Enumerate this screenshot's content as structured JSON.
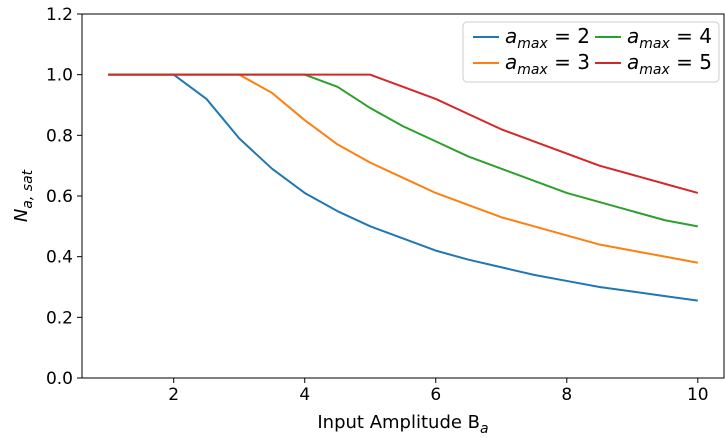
{
  "chart_data": {
    "type": "line",
    "xlabel": "Input Amplitude B",
    "xlabel_sub": "a",
    "ylabel": "N",
    "ylabel_sub": "a, sat",
    "xlim": [
      0.6,
      10.4
    ],
    "ylim": [
      0.0,
      1.2
    ],
    "xticks": [
      2,
      4,
      6,
      8,
      10
    ],
    "yticks": [
      0.0,
      0.2,
      0.4,
      0.6,
      0.8,
      1.0,
      1.2
    ],
    "ytick_labels": [
      "0.0",
      "0.2",
      "0.4",
      "0.6",
      "0.8",
      "1.0",
      "1.2"
    ],
    "grid": false,
    "legend_position": "top-right",
    "x": [
      1.0,
      1.5,
      2.0,
      2.5,
      3.0,
      3.5,
      4.0,
      4.5,
      5.0,
      5.5,
      6.0,
      6.5,
      7.0,
      7.5,
      8.0,
      8.5,
      9.0,
      9.5,
      10.0
    ],
    "series": [
      {
        "name": "a_max = 2",
        "label_var": "a",
        "label_sub": "max",
        "label_val": "= 2",
        "color": "#1f77b4",
        "values": [
          1.0,
          1.0,
          1.0,
          0.92,
          0.79,
          0.69,
          0.61,
          0.55,
          0.5,
          0.46,
          0.42,
          0.39,
          0.365,
          0.34,
          0.32,
          0.3,
          0.285,
          0.27,
          0.255
        ]
      },
      {
        "name": "a_max = 3",
        "label_var": "a",
        "label_sub": "max",
        "label_val": "= 3",
        "color": "#ff7f0e",
        "values": [
          1.0,
          1.0,
          1.0,
          1.0,
          1.0,
          0.94,
          0.85,
          0.77,
          0.71,
          0.66,
          0.61,
          0.57,
          0.53,
          0.5,
          0.47,
          0.44,
          0.42,
          0.4,
          0.38
        ]
      },
      {
        "name": "a_max = 4",
        "label_var": "a",
        "label_sub": "max",
        "label_val": "= 4",
        "color": "#2ca02c",
        "values": [
          1.0,
          1.0,
          1.0,
          1.0,
          1.0,
          1.0,
          1.0,
          0.96,
          0.89,
          0.83,
          0.78,
          0.73,
          0.69,
          0.65,
          0.61,
          0.58,
          0.55,
          0.52,
          0.5
        ]
      },
      {
        "name": "a_max = 5",
        "label_var": "a",
        "label_sub": "max",
        "label_val": "= 5",
        "color": "#d62728",
        "values": [
          1.0,
          1.0,
          1.0,
          1.0,
          1.0,
          1.0,
          1.0,
          1.0,
          1.0,
          0.96,
          0.92,
          0.87,
          0.82,
          0.78,
          0.74,
          0.7,
          0.67,
          0.64,
          0.61
        ]
      }
    ]
  }
}
